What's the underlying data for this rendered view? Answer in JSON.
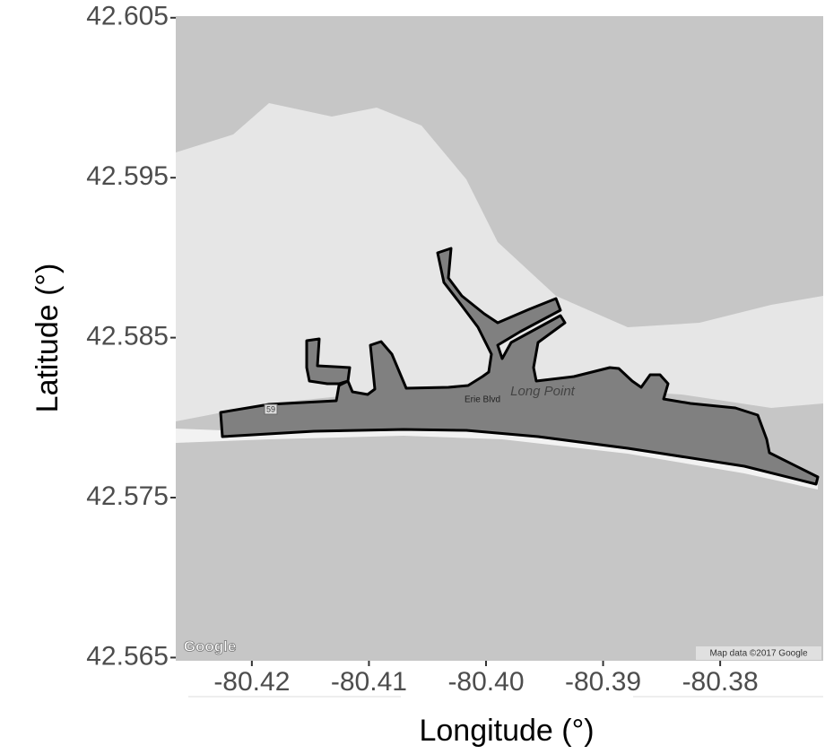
{
  "chart_data": {
    "type": "map",
    "x_label": "Longitude (°)",
    "y_label": "Latitude (°)",
    "xlim": [
      -80.4265,
      -80.3712
    ],
    "ylim": [
      42.5648,
      42.6051
    ],
    "xticks": [
      -80.42,
      -80.41,
      {
        "value": -80.4,
        "label": "-80.40"
      },
      -80.39,
      -80.38
    ],
    "yticks": [
      42.565,
      42.575,
      42.585,
      42.595,
      42.605
    ],
    "map_labels": {
      "place": "Long Point",
      "street": "Erie Blvd",
      "route": "59",
      "logo": "Google",
      "attribution": "Map data ©2017 Google"
    }
  }
}
